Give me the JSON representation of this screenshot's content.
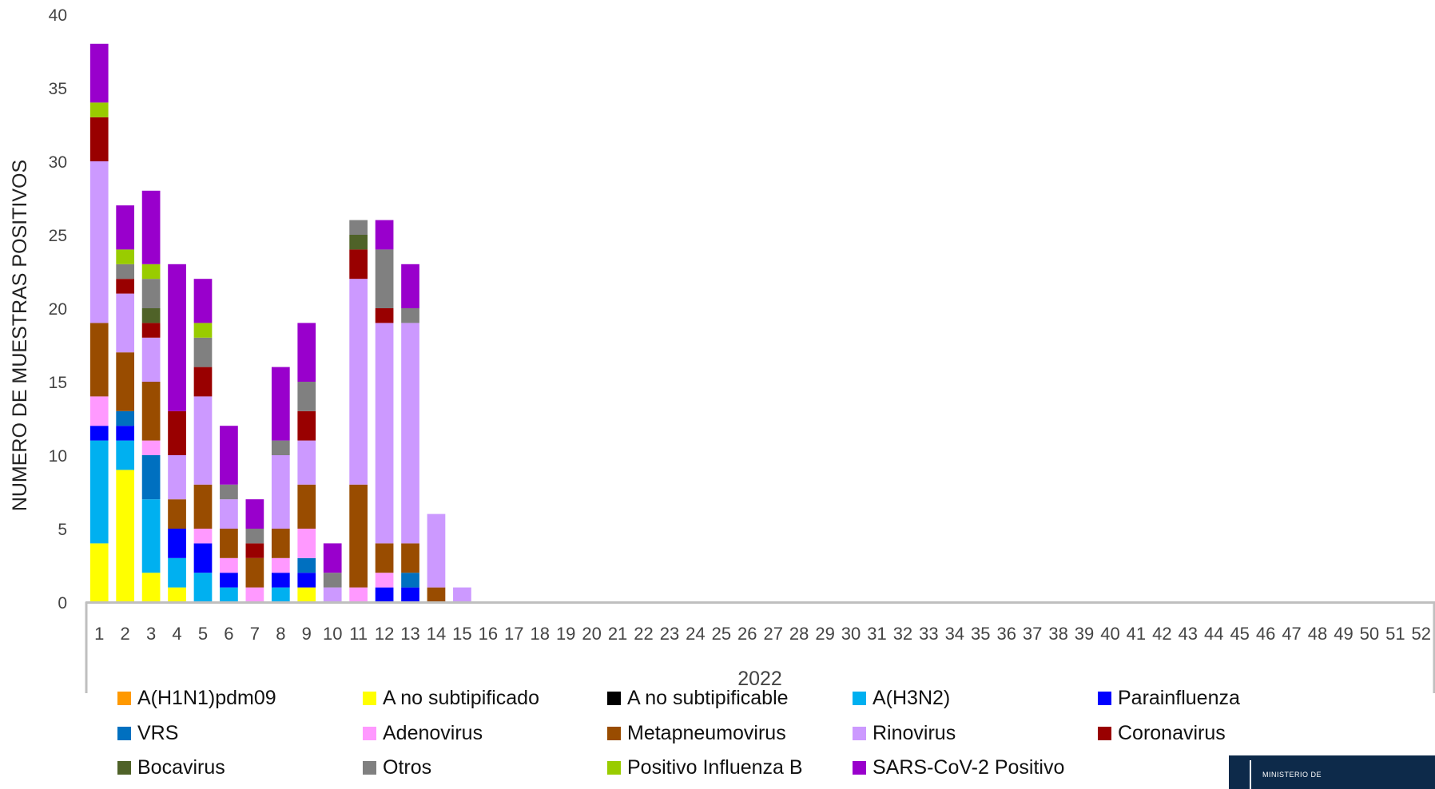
{
  "chart_data": {
    "type": "bar",
    "stacked": true,
    "title": "",
    "ylabel": "NUMERO DE MUESTRAS POSITIVOS",
    "xlabel": "2022",
    "ylim": [
      0,
      40
    ],
    "yticks": [
      0,
      5,
      10,
      15,
      20,
      25,
      30,
      35,
      40
    ],
    "grid": false,
    "legend_position": "bottom",
    "categories": [
      "1",
      "2",
      "3",
      "4",
      "5",
      "6",
      "7",
      "8",
      "9",
      "10",
      "11",
      "12",
      "13",
      "14",
      "15",
      "16",
      "17",
      "18",
      "19",
      "20",
      "21",
      "22",
      "23",
      "24",
      "25",
      "26",
      "27",
      "28",
      "29",
      "30",
      "31",
      "32",
      "33",
      "34",
      "35",
      "36",
      "37",
      "38",
      "39",
      "40",
      "41",
      "42",
      "43",
      "44",
      "45",
      "46",
      "47",
      "48",
      "49",
      "50",
      "51",
      "52"
    ],
    "series": [
      {
        "name": "A(H1N1)pdm09",
        "color": "#FF9900",
        "values": [
          0,
          0,
          0,
          0,
          0,
          0,
          0,
          0,
          0,
          0,
          0,
          0,
          0,
          0,
          0,
          0,
          0,
          0,
          0,
          0,
          0,
          0,
          0,
          0,
          0,
          0,
          0,
          0,
          0,
          0,
          0,
          0,
          0,
          0,
          0,
          0,
          0,
          0,
          0,
          0,
          0,
          0,
          0,
          0,
          0,
          0,
          0,
          0,
          0,
          0,
          0,
          0
        ]
      },
      {
        "name": "A no subtipificado",
        "color": "#FFFF00",
        "values": [
          4,
          9,
          2,
          1,
          0,
          0,
          0,
          0,
          1,
          0,
          0,
          0,
          0,
          0,
          0,
          0,
          0,
          0,
          0,
          0,
          0,
          0,
          0,
          0,
          0,
          0,
          0,
          0,
          0,
          0,
          0,
          0,
          0,
          0,
          0,
          0,
          0,
          0,
          0,
          0,
          0,
          0,
          0,
          0,
          0,
          0,
          0,
          0,
          0,
          0,
          0,
          0
        ]
      },
      {
        "name": "A no subtipificable",
        "color": "#000000",
        "values": [
          0,
          0,
          0,
          0,
          0,
          0,
          0,
          0,
          0,
          0,
          0,
          0,
          0,
          0,
          0,
          0,
          0,
          0,
          0,
          0,
          0,
          0,
          0,
          0,
          0,
          0,
          0,
          0,
          0,
          0,
          0,
          0,
          0,
          0,
          0,
          0,
          0,
          0,
          0,
          0,
          0,
          0,
          0,
          0,
          0,
          0,
          0,
          0,
          0,
          0,
          0,
          0
        ]
      },
      {
        "name": "A(H3N2)",
        "color": "#00B0F0",
        "values": [
          7,
          2,
          5,
          2,
          2,
          1,
          0,
          1,
          0,
          0,
          0,
          0,
          0,
          0,
          0,
          0,
          0,
          0,
          0,
          0,
          0,
          0,
          0,
          0,
          0,
          0,
          0,
          0,
          0,
          0,
          0,
          0,
          0,
          0,
          0,
          0,
          0,
          0,
          0,
          0,
          0,
          0,
          0,
          0,
          0,
          0,
          0,
          0,
          0,
          0,
          0,
          0
        ]
      },
      {
        "name": "Parainfluenza",
        "color": "#0000FF",
        "values": [
          1,
          1,
          0,
          2,
          2,
          1,
          0,
          1,
          1,
          0,
          0,
          1,
          1,
          0,
          0,
          0,
          0,
          0,
          0,
          0,
          0,
          0,
          0,
          0,
          0,
          0,
          0,
          0,
          0,
          0,
          0,
          0,
          0,
          0,
          0,
          0,
          0,
          0,
          0,
          0,
          0,
          0,
          0,
          0,
          0,
          0,
          0,
          0,
          0,
          0,
          0,
          0
        ]
      },
      {
        "name": "VRS",
        "color": "#0070C0",
        "values": [
          0,
          1,
          3,
          0,
          0,
          0,
          0,
          0,
          1,
          0,
          0,
          0,
          1,
          0,
          0,
          0,
          0,
          0,
          0,
          0,
          0,
          0,
          0,
          0,
          0,
          0,
          0,
          0,
          0,
          0,
          0,
          0,
          0,
          0,
          0,
          0,
          0,
          0,
          0,
          0,
          0,
          0,
          0,
          0,
          0,
          0,
          0,
          0,
          0,
          0,
          0,
          0
        ]
      },
      {
        "name": "Adenovirus",
        "color": "#FF99FF",
        "values": [
          2,
          0,
          1,
          0,
          1,
          1,
          1,
          1,
          2,
          0,
          1,
          1,
          0,
          0,
          0,
          0,
          0,
          0,
          0,
          0,
          0,
          0,
          0,
          0,
          0,
          0,
          0,
          0,
          0,
          0,
          0,
          0,
          0,
          0,
          0,
          0,
          0,
          0,
          0,
          0,
          0,
          0,
          0,
          0,
          0,
          0,
          0,
          0,
          0,
          0,
          0,
          0
        ]
      },
      {
        "name": "Metapneumovirus",
        "color": "#994C00",
        "values": [
          5,
          4,
          4,
          2,
          3,
          2,
          2,
          2,
          3,
          0,
          7,
          2,
          2,
          1,
          0,
          0,
          0,
          0,
          0,
          0,
          0,
          0,
          0,
          0,
          0,
          0,
          0,
          0,
          0,
          0,
          0,
          0,
          0,
          0,
          0,
          0,
          0,
          0,
          0,
          0,
          0,
          0,
          0,
          0,
          0,
          0,
          0,
          0,
          0,
          0,
          0,
          0
        ]
      },
      {
        "name": "Rinovirus",
        "color": "#CC99FF",
        "values": [
          11,
          4,
          3,
          3,
          6,
          2,
          0,
          5,
          3,
          1,
          14,
          15,
          15,
          5,
          1,
          0,
          0,
          0,
          0,
          0,
          0,
          0,
          0,
          0,
          0,
          0,
          0,
          0,
          0,
          0,
          0,
          0,
          0,
          0,
          0,
          0,
          0,
          0,
          0,
          0,
          0,
          0,
          0,
          0,
          0,
          0,
          0,
          0,
          0,
          0,
          0,
          0
        ]
      },
      {
        "name": "Coronavirus",
        "color": "#990000",
        "values": [
          3,
          1,
          1,
          3,
          2,
          0,
          1,
          0,
          2,
          0,
          2,
          1,
          0,
          0,
          0,
          0,
          0,
          0,
          0,
          0,
          0,
          0,
          0,
          0,
          0,
          0,
          0,
          0,
          0,
          0,
          0,
          0,
          0,
          0,
          0,
          0,
          0,
          0,
          0,
          0,
          0,
          0,
          0,
          0,
          0,
          0,
          0,
          0,
          0,
          0,
          0,
          0
        ]
      },
      {
        "name": "Bocavirus",
        "color": "#4F6228",
        "values": [
          0,
          0,
          1,
          0,
          0,
          0,
          0,
          0,
          0,
          0,
          1,
          0,
          0,
          0,
          0,
          0,
          0,
          0,
          0,
          0,
          0,
          0,
          0,
          0,
          0,
          0,
          0,
          0,
          0,
          0,
          0,
          0,
          0,
          0,
          0,
          0,
          0,
          0,
          0,
          0,
          0,
          0,
          0,
          0,
          0,
          0,
          0,
          0,
          0,
          0,
          0,
          0
        ]
      },
      {
        "name": "Otros",
        "color": "#808080",
        "values": [
          0,
          1,
          2,
          0,
          2,
          1,
          1,
          1,
          2,
          1,
          1,
          4,
          1,
          0,
          0,
          0,
          0,
          0,
          0,
          0,
          0,
          0,
          0,
          0,
          0,
          0,
          0,
          0,
          0,
          0,
          0,
          0,
          0,
          0,
          0,
          0,
          0,
          0,
          0,
          0,
          0,
          0,
          0,
          0,
          0,
          0,
          0,
          0,
          0,
          0,
          0,
          0
        ]
      },
      {
        "name": "Positivo Influenza  B",
        "color": "#99CC00",
        "values": [
          1,
          1,
          1,
          0,
          1,
          0,
          0,
          0,
          0,
          0,
          0,
          0,
          0,
          0,
          0,
          0,
          0,
          0,
          0,
          0,
          0,
          0,
          0,
          0,
          0,
          0,
          0,
          0,
          0,
          0,
          0,
          0,
          0,
          0,
          0,
          0,
          0,
          0,
          0,
          0,
          0,
          0,
          0,
          0,
          0,
          0,
          0,
          0,
          0,
          0,
          0,
          0
        ]
      },
      {
        "name": "SARS-CoV-2 Positivo",
        "color": "#9900CC",
        "values": [
          4,
          3,
          5,
          10,
          3,
          4,
          2,
          5,
          4,
          2,
          0,
          2,
          3,
          0,
          0,
          0,
          0,
          0,
          0,
          0,
          0,
          0,
          0,
          0,
          0,
          0,
          0,
          0,
          0,
          0,
          0,
          0,
          0,
          0,
          0,
          0,
          0,
          0,
          0,
          0,
          0,
          0,
          0,
          0,
          0,
          0,
          0,
          0,
          0,
          0,
          0,
          0
        ]
      }
    ]
  },
  "logo": {
    "text": "MINISTERIO DE",
    "background": "#0D2A4A"
  }
}
